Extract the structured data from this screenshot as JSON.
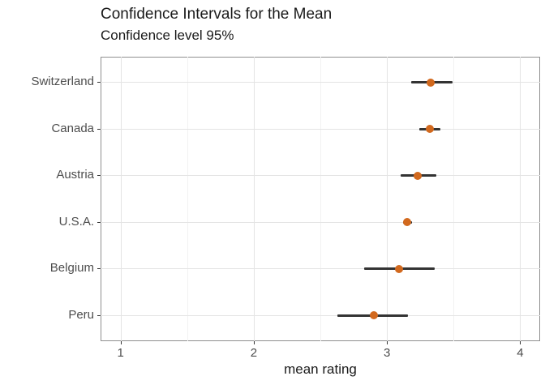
{
  "figure": {
    "title": "Confidence Intervals for the Mean",
    "subtitle": "Confidence level 95%"
  },
  "chart_data": {
    "type": "scatter",
    "variant": "horizontal-point-with-ci-errorbars",
    "title": "Confidence Intervals for the Mean",
    "subtitle": "Confidence level 95%",
    "xlabel": "mean rating",
    "ylabel": "",
    "categories": [
      "Switzerland",
      "Canada",
      "Austria",
      "U.S.A.",
      "Belgium",
      "Peru"
    ],
    "series": [
      {
        "name": "mean rating with 95% confidence interval",
        "points": [
          {
            "category": "Switzerland",
            "mean": 3.33,
            "ci_low": 3.18,
            "ci_high": 3.49
          },
          {
            "category": "Canada",
            "mean": 3.32,
            "ci_low": 3.24,
            "ci_high": 3.4
          },
          {
            "category": "Austria",
            "mean": 3.23,
            "ci_low": 3.1,
            "ci_high": 3.37
          },
          {
            "category": "U.S.A.",
            "mean": 3.15,
            "ci_low": 3.12,
            "ci_high": 3.19
          },
          {
            "category": "Belgium",
            "mean": 3.09,
            "ci_low": 2.83,
            "ci_high": 3.36
          },
          {
            "category": "Peru",
            "mean": 2.9,
            "ci_low": 2.63,
            "ci_high": 3.16
          }
        ]
      }
    ],
    "x_ticks": [
      1,
      2,
      3,
      4
    ],
    "x_minor_gridlines": [
      1.5,
      2.5,
      3.5
    ],
    "xlim": [
      0.85,
      4.15
    ],
    "grid": true,
    "legend_position": "none",
    "colors": {
      "point": "#D2691E",
      "interval_line": "#333333",
      "grid_major": "#E4E4E4",
      "grid_minor": "#F2F2F2",
      "panel_border": "#8F8F8F",
      "axis_text": "#4D4D4D",
      "tick_mark": "#333333",
      "title_text": "#1A1A1A"
    }
  }
}
